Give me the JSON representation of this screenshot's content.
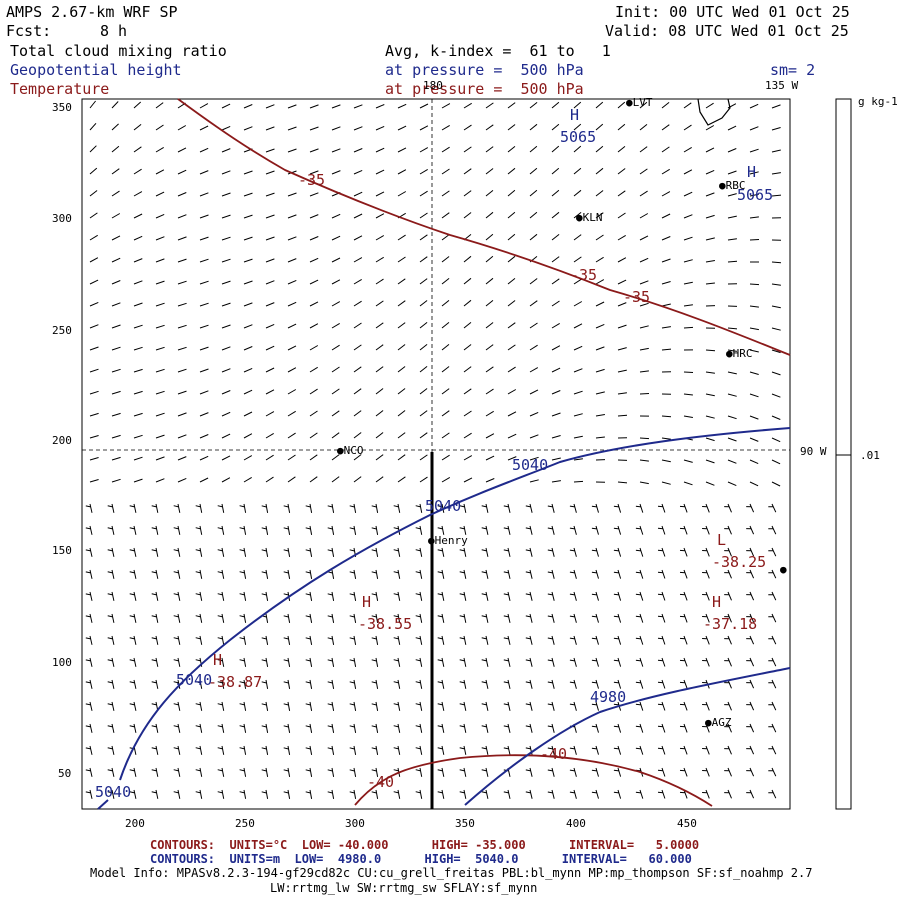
{
  "header": {
    "model": "AMPS 2.67-km WRF SP",
    "init": "Init: 00 UTC Wed 01 Oct 25",
    "fcst_label": "Fcst:",
    "fcst_value": "8 h",
    "valid": "Valid: 08 UTC Wed 01 Oct 25",
    "field1": "Total cloud mixing ratio",
    "field1_info": "Avg, k-index =  61 to   1",
    "field2": "Geopotential height",
    "field2_info": "at pressure =  500 hPa",
    "sm": "sm= 2",
    "field3": "Temperature",
    "field3_info": "at pressure =  500 hPa"
  },
  "map": {
    "lon_labels": [
      "180",
      "135 W",
      "90 W"
    ],
    "x_ticks": [
      "200",
      "250",
      "300",
      "350",
      "400",
      "450"
    ],
    "y_ticks": [
      "350",
      "300",
      "250",
      "200",
      "150",
      "100",
      "50"
    ],
    "stations": [
      {
        "name": "LVT"
      },
      {
        "name": "RBC"
      },
      {
        "name": "KLN"
      },
      {
        "name": "HRC"
      },
      {
        "name": "NCO"
      },
      {
        "name": "Henry"
      },
      {
        "name": "AGZ"
      }
    ],
    "height_labels": [
      "H",
      "5065",
      "H",
      "5065",
      "5040",
      "5040",
      "5040",
      "4980",
      "5040"
    ],
    "temp_labels": [
      "-35",
      "-35",
      "-35",
      "-40",
      "-40",
      "L",
      "-38.25",
      "H",
      "-37.18",
      "H",
      "-38.55",
      "H",
      "-38.87"
    ],
    "height_color": "#1f2a8c",
    "temp_color": "#8b1a1a"
  },
  "colorbar": {
    "units": "g kg-1",
    "value": ".01"
  },
  "footer": {
    "temp_contours": "CONTOURS:  UNITS=°C  LOW= -40.000      HIGH= -35.000      INTERVAL=   5.0000",
    "height_contours": "CONTOURS:  UNITS=m  LOW=  4980.0      HIGH=  5040.0      INTERVAL=   60.000",
    "model_info": "Model Info: MPASv8.2.3-194-gf29cd82c CU:cu_grell_freitas PBL:bl_mynn MP:mp_thompson SF:sf_noahmp 2.7",
    "model_info2": "LW:rrtmg_lw SW:rrtmg_sw SFLAY:sf_mynn"
  }
}
